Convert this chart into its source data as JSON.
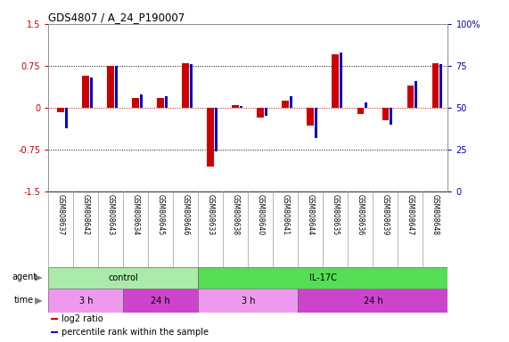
{
  "title": "GDS4807 / A_24_P190007",
  "samples": [
    "GSM808637",
    "GSM808642",
    "GSM808643",
    "GSM808634",
    "GSM808645",
    "GSM808646",
    "GSM808633",
    "GSM808638",
    "GSM808640",
    "GSM808641",
    "GSM808644",
    "GSM808635",
    "GSM808636",
    "GSM808639",
    "GSM808647",
    "GSM808648"
  ],
  "log2_ratio": [
    -0.08,
    0.58,
    0.75,
    0.18,
    0.17,
    0.8,
    -1.05,
    0.05,
    -0.18,
    0.12,
    -0.32,
    0.95,
    -0.12,
    -0.22,
    0.4,
    0.8
  ],
  "percentile": [
    38,
    68,
    75,
    58,
    57,
    76,
    24,
    51,
    45,
    57,
    32,
    83,
    53,
    40,
    66,
    76
  ],
  "ylim_min": -1.5,
  "ylim_max": 1.5,
  "yticks_left": [
    -1.5,
    -0.75,
    0.0,
    0.75,
    1.5
  ],
  "yticks_right": [
    0,
    25,
    50,
    75,
    100
  ],
  "bar_color_red": "#cc0000",
  "bar_color_blue": "#0000cc",
  "agent_groups": [
    {
      "label": "control",
      "start": 0,
      "end": 6,
      "color": "#aaeaaa"
    },
    {
      "label": "IL-17C",
      "start": 6,
      "end": 16,
      "color": "#55dd55"
    }
  ],
  "time_groups": [
    {
      "label": "3 h",
      "start": 0,
      "end": 3,
      "color": "#ee99ee"
    },
    {
      "label": "24 h",
      "start": 3,
      "end": 6,
      "color": "#cc44cc"
    },
    {
      "label": "3 h",
      "start": 6,
      "end": 10,
      "color": "#ee99ee"
    },
    {
      "label": "24 h",
      "start": 10,
      "end": 16,
      "color": "#cc44cc"
    }
  ],
  "legend_items": [
    {
      "label": "log2 ratio",
      "color": "#cc0000"
    },
    {
      "label": "percentile rank within the sample",
      "color": "#0000cc"
    }
  ],
  "bg_color": "#ffffff",
  "tick_label_color_left": "#cc0000",
  "tick_label_color_right": "#0000bb",
  "sample_bg_color": "#cccccc",
  "sample_border_color": "#999999"
}
